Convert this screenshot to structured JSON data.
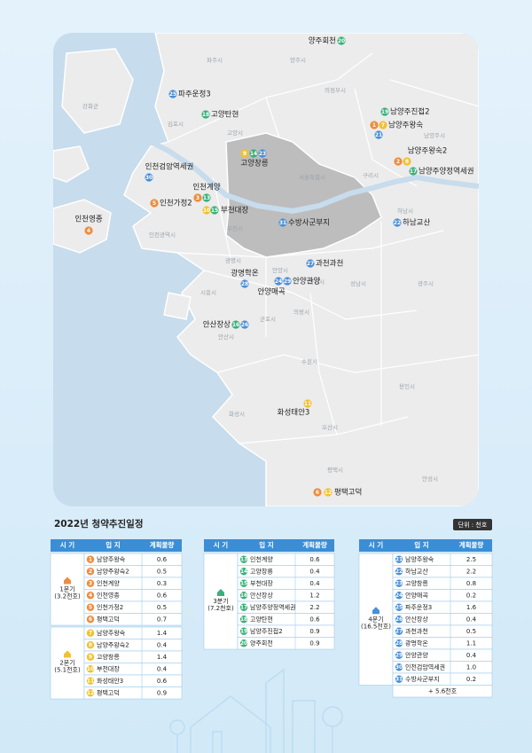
{
  "map": {
    "regions": [
      "파주시",
      "양주시",
      "의정부시",
      "고양시",
      "남양주시",
      "서울특별시",
      "구리시",
      "하남시",
      "부천시",
      "인천광역시",
      "광명시",
      "시흥시",
      "안양시",
      "과천시",
      "성남시",
      "광주시",
      "군포시",
      "의왕시",
      "안산시",
      "수원시",
      "용인시",
      "화성시",
      "오산시",
      "평택시",
      "안성시",
      "김포시",
      "강화군"
    ],
    "sites": [
      {
        "label": "양주회천",
        "markers": [
          20
        ]
      },
      {
        "label": "파주운정3",
        "markers": [
          25
        ]
      },
      {
        "label": "고양탄현",
        "markers": [
          18
        ]
      },
      {
        "label": "남양주진접2",
        "markers": [
          19
        ]
      },
      {
        "label": "남양주왕숙",
        "markers": [
          1,
          7,
          21
        ]
      },
      {
        "label": "남양주왕숙2",
        "markers": [
          2,
          8
        ]
      },
      {
        "label": "남양주양정역세권",
        "markers": [
          17
        ]
      },
      {
        "label": "고양창릉",
        "markers": [
          9,
          14,
          23
        ]
      },
      {
        "label": "인천검암역세권",
        "markers": [
          30
        ]
      },
      {
        "label": "인천계양",
        "markers": [
          3,
          13
        ]
      },
      {
        "label": "인천가정2",
        "markers": [
          5
        ]
      },
      {
        "label": "부천대장",
        "markers": [
          10,
          15
        ]
      },
      {
        "label": "인천영종",
        "markers": [
          4
        ]
      },
      {
        "label": "수방사군부지",
        "markers": [
          31
        ]
      },
      {
        "label": "하남교산",
        "markers": [
          22
        ]
      },
      {
        "label": "과천과천",
        "markers": [
          27
        ]
      },
      {
        "label": "광명학온",
        "markers": [
          28
        ]
      },
      {
        "label": "안양관양",
        "markers": [
          29
        ]
      },
      {
        "label": "안양매곡",
        "markers": [
          24
        ]
      },
      {
        "label": "안산장상",
        "markers": [
          16,
          26
        ]
      },
      {
        "label": "화성태안3",
        "markers": [
          11
        ]
      },
      {
        "label": "평택고덕",
        "markers": [
          6,
          12
        ]
      }
    ]
  },
  "schedule": {
    "title": "2022년 청약추진일정",
    "unit": "단위 : 천호",
    "headers": [
      "시 기",
      "입 지",
      "계획물량"
    ],
    "tables": [
      {
        "groups": [
          {
            "quarter": "1분기",
            "total": "(3.2천호)",
            "color": "#f08b3c",
            "rows": [
              {
                "no": 1,
                "site": "남양주왕숙",
                "amount": 0.6
              },
              {
                "no": 2,
                "site": "남양주왕숙2",
                "amount": 0.5
              },
              {
                "no": 3,
                "site": "인천계양",
                "amount": 0.3
              },
              {
                "no": 4,
                "site": "인천영종",
                "amount": 0.6
              },
              {
                "no": 5,
                "site": "인천가정2",
                "amount": 0.5
              },
              {
                "no": 6,
                "site": "평택고덕",
                "amount": 0.7
              }
            ]
          },
          {
            "quarter": "2분기",
            "total": "(5.1천호)",
            "color": "#f2c12e",
            "rows": [
              {
                "no": 7,
                "site": "남양주왕숙",
                "amount": 1.4
              },
              {
                "no": 8,
                "site": "남양주왕숙2",
                "amount": 0.4
              },
              {
                "no": 9,
                "site": "고양창릉",
                "amount": 1.4
              },
              {
                "no": 10,
                "site": "부천대장",
                "amount": 0.4
              },
              {
                "no": 11,
                "site": "화성태안3",
                "amount": 0.6
              },
              {
                "no": 12,
                "site": "평택고덕",
                "amount": 0.9
              }
            ]
          }
        ]
      },
      {
        "groups": [
          {
            "quarter": "3분기",
            "total": "(7.2천호)",
            "color": "#3bb07a",
            "rows": [
              {
                "no": 13,
                "site": "인천계양",
                "amount": 0.6
              },
              {
                "no": 14,
                "site": "고양창릉",
                "amount": 0.4
              },
              {
                "no": 15,
                "site": "부천대장",
                "amount": 0.4
              },
              {
                "no": 16,
                "site": "안산장상",
                "amount": 1.2
              },
              {
                "no": 17,
                "site": "남양주양정역세권",
                "amount": 2.2
              },
              {
                "no": 18,
                "site": "고양탄현",
                "amount": 0.6
              },
              {
                "no": 19,
                "site": "남양주진접2",
                "amount": 0.9
              },
              {
                "no": 20,
                "site": "양주회천",
                "amount": 0.9
              }
            ]
          }
        ]
      },
      {
        "groups": [
          {
            "quarter": "4분기",
            "total": "(16.5천호)",
            "color": "#4a8fd6",
            "rows": [
              {
                "no": 21,
                "site": "남양주왕숙",
                "amount": 2.5
              },
              {
                "no": 22,
                "site": "하남교산",
                "amount": 2.2
              },
              {
                "no": 23,
                "site": "고양창릉",
                "amount": 0.8
              },
              {
                "no": 24,
                "site": "안양매곡",
                "amount": 0.2
              },
              {
                "no": 25,
                "site": "파주운정3",
                "amount": 1.6
              },
              {
                "no": 26,
                "site": "안산장상",
                "amount": 0.4
              },
              {
                "no": 27,
                "site": "과천과천",
                "amount": 0.5
              },
              {
                "no": 28,
                "site": "광명학온",
                "amount": 1.1
              },
              {
                "no": 29,
                "site": "안양관양",
                "amount": 0.4
              },
              {
                "no": 30,
                "site": "인천검암역세권",
                "amount": "1.0"
              },
              {
                "no": 31,
                "site": "수방사군부지",
                "amount": 0.2
              }
            ]
          }
        ],
        "footer": "+ 5.6천호"
      }
    ]
  }
}
